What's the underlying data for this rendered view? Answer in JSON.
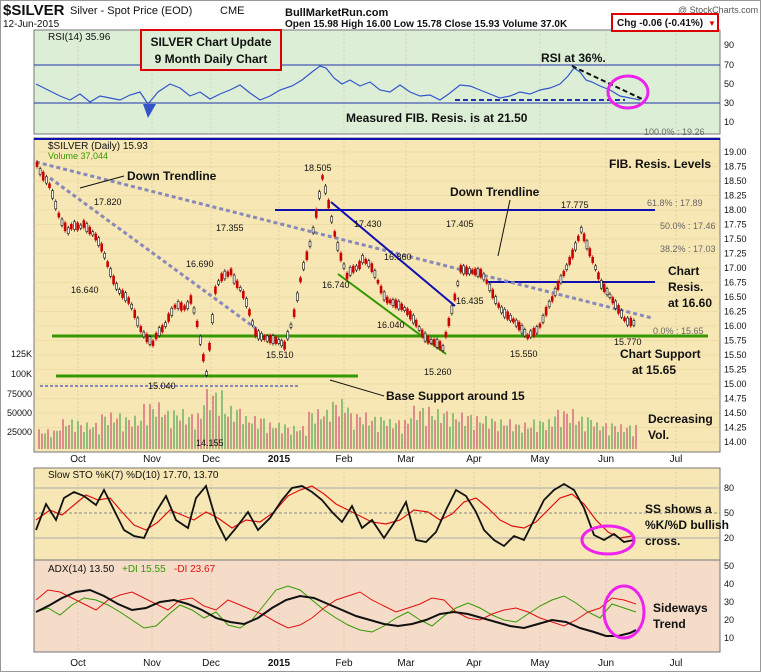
{
  "header": {
    "symbol": "$SILVER",
    "name": "Silver - Spot Price (EOD)",
    "exchange": "CME",
    "date": "12-Jun-2015",
    "site": "BullMarketRun.com",
    "copyright": "@ StockCharts.com",
    "ohlc": "Open 15.98  High 16.00  Low 15.78  Close 15.93  Volume 37.0K",
    "chg": "Chg -0.06 (-0.41%)",
    "chg_arrow": "▼"
  },
  "colors": {
    "up_candle": "#000000",
    "down_candle": "#cc0000",
    "price_bg": "#f7e7b4",
    "rsi_bg": "#dcefd6",
    "sto_bg": "#f7e7b4",
    "adx_bg": "#f5dcc8",
    "fib_line": "#1010b0",
    "support_line": "#339900",
    "trend_line": "#8888bb",
    "highlight": "#ee22ee",
    "title_box": "#dd0000"
  },
  "rsi_panel": {
    "label": "RSI(14) 35.96",
    "title_box_line1": "SILVER Chart Update",
    "title_box_line2": "9 Month Daily Chart",
    "annotation_rsi": "RSI at 36%.",
    "annotation_fib": "Measured FIB. Resis. is at 21.50",
    "axis_ticks": [
      "90",
      "70",
      "50",
      "30",
      "10"
    ]
  },
  "price_panel": {
    "label": "$SILVER (Daily) 15.93",
    "volume_label": "Volume 37,044",
    "fib_title": "FIB. Resis. Levels",
    "fib_100": "100.0% : 19.26",
    "fib_618": "61.8% : 17.89",
    "fib_50": "50.0% : 17.46",
    "fib_382": "38.2% : 17.03",
    "fib_0": "0.0% : 15.65",
    "down_trendline_left": "Down Trendline",
    "down_trendline_right": "Down Trendline",
    "chart_resis_1": "Chart",
    "chart_resis_2": "Resis.",
    "chart_resis_3": "at 16.60",
    "chart_support_1": "Chart Support",
    "chart_support_2": "at 15.65",
    "base_support": "Base Support around 15",
    "decreasing_vol_1": "Decreasing",
    "decreasing_vol_2": "Vol.",
    "vol_ticks": [
      "125K",
      "100K",
      "75000",
      "50000",
      "25000"
    ],
    "axis_ticks": [
      "19.00",
      "18.75",
      "18.50",
      "18.25",
      "18.00",
      "17.75",
      "17.50",
      "17.25",
      "17.00",
      "16.75",
      "16.50",
      "16.25",
      "16.00",
      "15.75",
      "15.50",
      "15.25",
      "15.00",
      "14.75",
      "14.50",
      "14.25",
      "14.00"
    ],
    "price_labels": [
      "17.820",
      "16.640",
      "16.690",
      "17.355",
      "15.510",
      "18.505",
      "17.430",
      "16.860",
      "16.740",
      "16.040",
      "15.260",
      "17.405",
      "16.435",
      "15.550",
      "17.775",
      "15.770",
      "15.040",
      "14.155"
    ]
  },
  "sto_panel": {
    "label": "Slow STO %K(7) %D(10) 17.70, 13.70",
    "annotation_1": "SS shows a",
    "annotation_2": "%K/%D bullish",
    "annotation_3": "cross.",
    "axis_ticks": [
      "80",
      "50",
      "20"
    ]
  },
  "adx_panel": {
    "label_adx": "ADX(14) 13.50",
    "label_pdi": "+DI 15.55",
    "label_mdi": "-DI 23.67",
    "annotation_1": "Sideways",
    "annotation_2": "Trend",
    "axis_ticks": [
      "50",
      "40",
      "30",
      "20",
      "10"
    ]
  },
  "x_axis": {
    "months": [
      "Oct",
      "Nov",
      "Dec",
      "2015",
      "Feb",
      "Mar",
      "Apr",
      "May",
      "Jun",
      "Jul"
    ]
  },
  "chart_data": {
    "type": "line",
    "title": "SILVER Chart Update 9 Month Daily Chart",
    "xlabel": "",
    "ylabel": "",
    "ylim": [
      14.0,
      19.1
    ],
    "y_scale": "log",
    "x": [
      "2014-09-16",
      "2014-09-30",
      "2014-10-07",
      "2014-10-15",
      "2014-10-23",
      "2014-11-07",
      "2014-11-14",
      "2014-11-24",
      "2014-12-01",
      "2014-12-05",
      "2014-12-12",
      "2014-12-23",
      "2015-01-05",
      "2015-01-15",
      "2015-01-22",
      "2015-02-02",
      "2015-02-09",
      "2015-02-20",
      "2015-03-05",
      "2015-03-17",
      "2015-03-25",
      "2015-04-03",
      "2015-04-15",
      "2015-04-24",
      "2015-05-05",
      "2015-05-18",
      "2015-05-27",
      "2015-06-05",
      "2015-06-12"
    ],
    "series": [
      {
        "name": "$SILVER (Daily)",
        "values": [
          18.85,
          17.6,
          17.82,
          17.3,
          16.64,
          15.65,
          16.2,
          16.45,
          15.25,
          16.62,
          17.0,
          15.95,
          15.6,
          17.2,
          18.5,
          16.8,
          17.2,
          16.5,
          16.04,
          15.55,
          17.05,
          16.85,
          16.2,
          15.75,
          16.4,
          17.7,
          16.65,
          16.25,
          15.93
        ]
      }
    ],
    "volume": [
      30000,
      45000,
      40000,
      55000,
      50000,
      70000,
      60000,
      55000,
      90000,
      65000,
      50000,
      40000,
      35000,
      60000,
      75000,
      55000,
      50000,
      45000,
      65000,
      60000,
      55000,
      50000,
      45000,
      40000,
      45000,
      60000,
      50000,
      40000,
      37044
    ],
    "annotations": [
      "Down Trendline",
      "Base Support around 15",
      "Chart Resis. at 16.60",
      "Chart Support at 15.65",
      "FIB. Resis. Levels"
    ]
  }
}
